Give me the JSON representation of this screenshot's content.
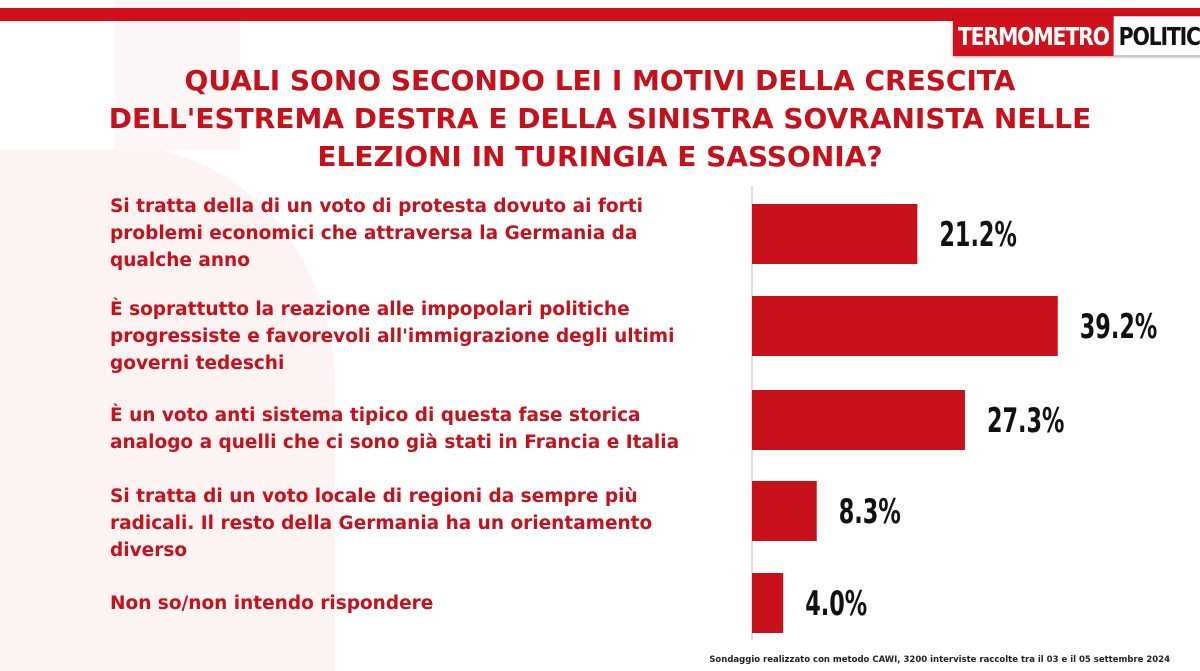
{
  "brand": {
    "part1": "TERMOMETRO",
    "part2": "POLITICO",
    "accent_color": "#d0101a"
  },
  "title": "QUALI SONO SECONDO LEI I MOTIVI DELLA CRESCITA\nDELL'ESTREMA DESTRA E DELLA SINISTRA SOVRANISTA NELLE\nELEZIONI IN TURINGIA E SASSONIA?",
  "footnote": "Sondaggio realizzato con metodo CAWI, 3200 interviste raccolte tra il 03 e il 05 settembre 2024",
  "chart_data": {
    "type": "bar",
    "orientation": "horizontal",
    "categories": [
      "Si tratta della di un voto di protesta dovuto ai forti\nproblemi economici che attraversa la Germania da\nqualche anno",
      "È soprattutto la reazione alle impopolari politiche\nprogressiste e favorevoli all'immigrazione degli ultimi\ngoverni tedeschi",
      "È un voto anti sistema tipico di questa fase storica\nanalogo a quelli che ci sono già stati in Francia e Italia",
      "Si tratta di un voto locale di regioni da sempre più\nradicali. Il resto della Germania ha un orientamento\ndiverso",
      "Non so/non intendo rispondere"
    ],
    "values": [
      21.2,
      39.2,
      27.3,
      8.3,
      4.0
    ],
    "value_labels": [
      "21.2%",
      "39.2%",
      "27.3%",
      "8.3%",
      "4.0%"
    ],
    "unit": "%",
    "bar_color": "#c8101a",
    "grid": false,
    "legend": "none"
  }
}
